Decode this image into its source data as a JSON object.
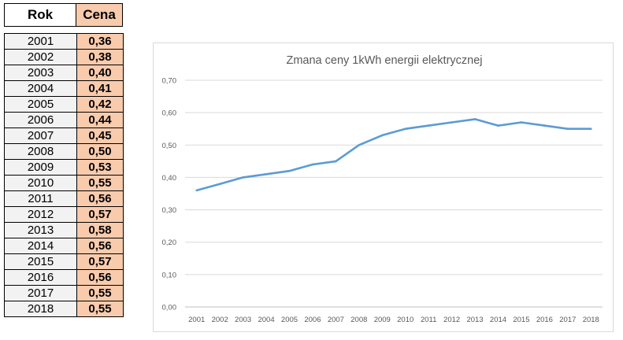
{
  "table": {
    "header_year": "Rok",
    "header_price": "Cena",
    "rows": [
      {
        "year": "2001",
        "price": "0,36"
      },
      {
        "year": "2002",
        "price": "0,38"
      },
      {
        "year": "2003",
        "price": "0,40"
      },
      {
        "year": "2004",
        "price": "0,41"
      },
      {
        "year": "2005",
        "price": "0,42"
      },
      {
        "year": "2006",
        "price": "0,44"
      },
      {
        "year": "2007",
        "price": "0,45"
      },
      {
        "year": "2008",
        "price": "0,50"
      },
      {
        "year": "2009",
        "price": "0,53"
      },
      {
        "year": "2010",
        "price": "0,55"
      },
      {
        "year": "2011",
        "price": "0,56"
      },
      {
        "year": "2012",
        "price": "0,57"
      },
      {
        "year": "2013",
        "price": "0,58"
      },
      {
        "year": "2014",
        "price": "0,56"
      },
      {
        "year": "2015",
        "price": "0,57"
      },
      {
        "year": "2016",
        "price": "0,56"
      },
      {
        "year": "2017",
        "price": "0,55"
      },
      {
        "year": "2018",
        "price": "0,55"
      }
    ],
    "header_price_color": "#f8cbad",
    "year_cell_color": "#f2f2f2"
  },
  "chart_data": {
    "type": "line",
    "title": "Zmana ceny 1kWh energii elektrycznej",
    "xlabel": "",
    "ylabel": "",
    "categories": [
      "2001",
      "2002",
      "2003",
      "2004",
      "2005",
      "2006",
      "2007",
      "2008",
      "2009",
      "2010",
      "2011",
      "2012",
      "2013",
      "2014",
      "2015",
      "2016",
      "2017",
      "2018"
    ],
    "series": [
      {
        "values": [
          0.36,
          0.38,
          0.4,
          0.41,
          0.42,
          0.44,
          0.45,
          0.5,
          0.53,
          0.55,
          0.56,
          0.57,
          0.58,
          0.56,
          0.57,
          0.56,
          0.55,
          0.55
        ],
        "color": "#5b9bd5"
      }
    ],
    "ylim": [
      0,
      0.7
    ],
    "yticks": [
      0,
      0.1,
      0.2,
      0.3,
      0.4,
      0.5,
      0.6,
      0.7
    ],
    "ytick_labels": [
      "0,00",
      "0,10",
      "0,20",
      "0,30",
      "0,40",
      "0,50",
      "0,60",
      "0,70"
    ],
    "grid": true,
    "legend": "none"
  }
}
